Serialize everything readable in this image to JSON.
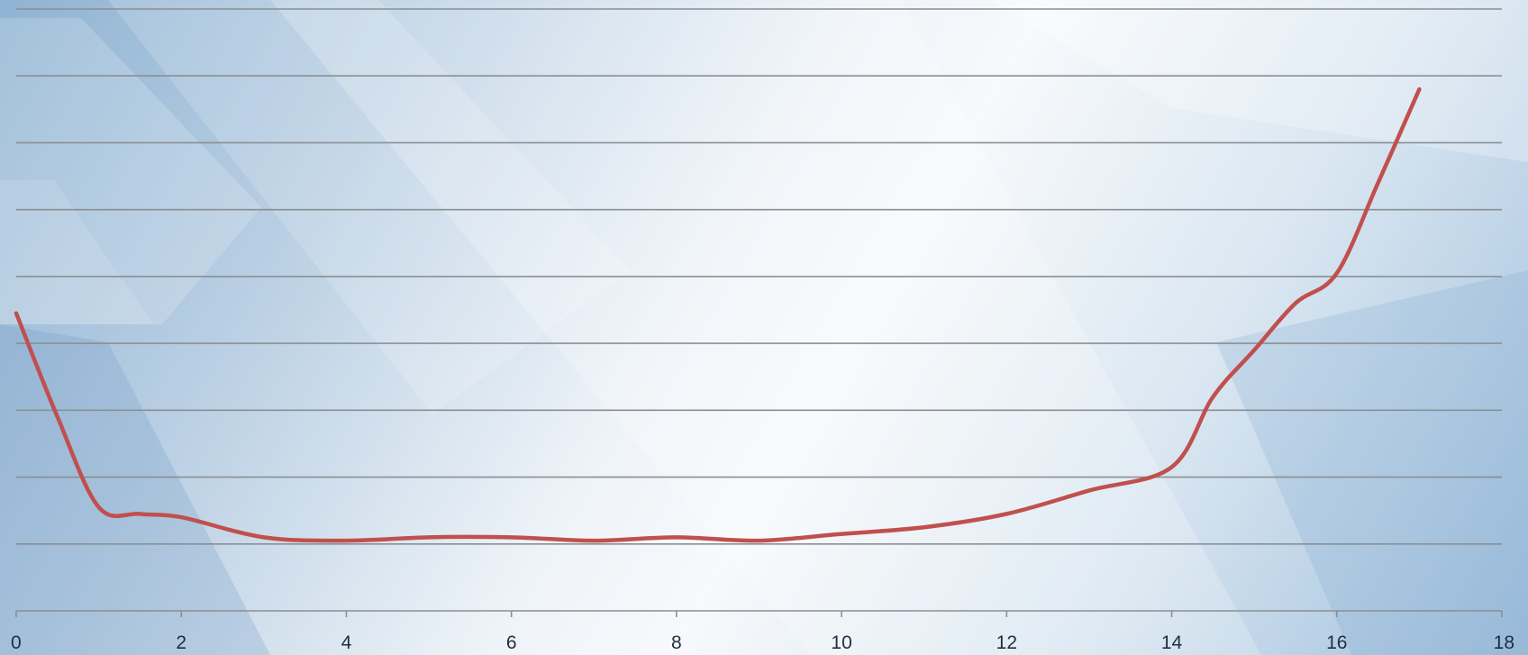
{
  "chart_data": {
    "type": "line",
    "title": "",
    "xlabel": "",
    "ylabel": "",
    "xlim": [
      0,
      18
    ],
    "x_ticks": [
      "0",
      "2",
      "4",
      "6",
      "8",
      "10",
      "12",
      "14",
      "16",
      "18"
    ],
    "y_gridlines": 9,
    "ylim": [
      0,
      9
    ],
    "grid": true,
    "legend": "none",
    "series": [
      {
        "color": "#c0504d",
        "x": [
          0,
          0.5,
          1,
          1.5,
          2,
          3,
          4,
          5,
          6,
          7,
          8,
          9,
          10,
          11,
          12,
          13,
          14,
          14.5,
          15,
          15.5,
          16,
          16.5,
          17
        ],
        "y": [
          4.45,
          2.9,
          1.55,
          1.45,
          1.4,
          1.1,
          1.05,
          1.1,
          1.1,
          1.05,
          1.1,
          1.05,
          1.15,
          1.25,
          1.45,
          1.8,
          2.15,
          3.2,
          3.9,
          4.6,
          5.05,
          6.4,
          7.8
        ]
      }
    ]
  },
  "colors": {
    "gridline": "#8a8f94",
    "line": "#c0504d",
    "axis_text": "#1f2f3f"
  }
}
